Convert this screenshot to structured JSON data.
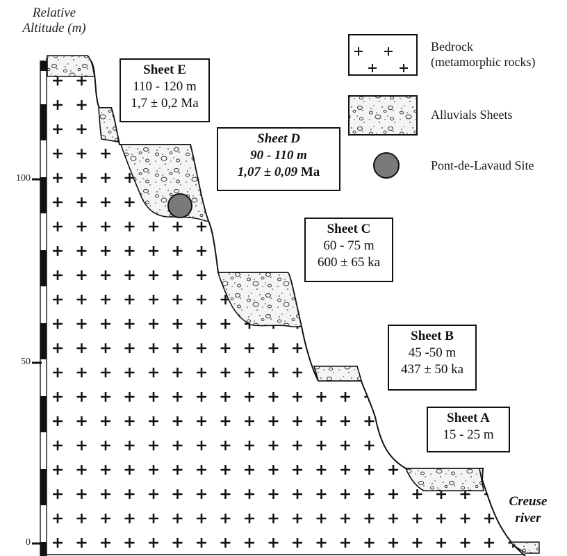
{
  "axis": {
    "title_line1": "Relative",
    "title_line2": "Altitude (m)",
    "ticks": [
      {
        "value": 100,
        "label": "100"
      },
      {
        "value": 50,
        "label": "50"
      },
      {
        "value": 0,
        "label": "0"
      }
    ]
  },
  "legend": {
    "bedrock_line1": "Bedrock",
    "bedrock_line2": "(metamorphic rocks)",
    "alluvials": "Alluvials Sheets",
    "site": "Pont-de-Lavaud Site"
  },
  "sheets": {
    "E": {
      "title": "Sheet E",
      "altitude": "110 - 120 m",
      "age": "1,7 ± 0,2 Ma"
    },
    "D": {
      "title": "Sheet D",
      "altitude": "90 - 110 m",
      "age_value": "1,07 ± 0,09",
      "age_unit": " Ma"
    },
    "C": {
      "title": "Sheet C",
      "altitude": "60 - 75 m",
      "age": "600 ± 65 ka"
    },
    "B": {
      "title": "Sheet B",
      "altitude": "45 -50 m",
      "age": "437 ± 50 ka"
    },
    "A": {
      "title": "Sheet A",
      "altitude": "15 - 25 m"
    }
  },
  "river": {
    "line1": "Creuse",
    "line2": "river"
  },
  "colors": {
    "ink": "#111111",
    "site_fill": "#7a7a7a",
    "alluvial_fill": "#f2f2f2",
    "bedrock_fill": "#ffffff"
  },
  "icons": {
    "bedrock": "plus-cross-pattern",
    "alluvial": "pebble-stipple-pattern",
    "site": "grey-circle"
  }
}
